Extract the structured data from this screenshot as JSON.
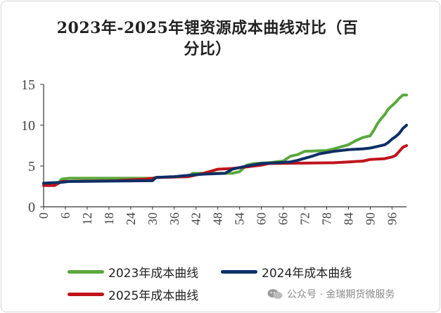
{
  "chart_data": {
    "type": "line",
    "title": "2023年-2025年锂资源成本曲线对比（百分比）",
    "title_lines": [
      "2023年-2025年锂资源成本曲线对比（百",
      "分比）"
    ],
    "xlabel": "",
    "ylabel": "",
    "x_ticks": [
      "0",
      "6",
      "12",
      "18",
      "24",
      "30",
      "36",
      "42",
      "48",
      "54",
      "60",
      "66",
      "72",
      "78",
      "84",
      "90",
      "96"
    ],
    "y_ticks": [
      "0",
      "5",
      "10",
      "15"
    ],
    "xlim": [
      0,
      100
    ],
    "ylim": [
      0,
      15
    ],
    "grid": false,
    "legend_position": "bottom",
    "series": [
      {
        "name": "2023年成本曲线",
        "color": "#5aa83c",
        "points": [
          [
            0,
            2.8
          ],
          [
            4,
            2.9
          ],
          [
            5,
            3.4
          ],
          [
            7,
            3.5
          ],
          [
            30,
            3.5
          ],
          [
            31,
            3.6
          ],
          [
            40,
            3.7
          ],
          [
            41,
            4.1
          ],
          [
            52,
            4.1
          ],
          [
            54,
            4.3
          ],
          [
            56,
            5.1
          ],
          [
            58,
            5.3
          ],
          [
            62,
            5.4
          ],
          [
            66,
            5.6
          ],
          [
            68,
            6.2
          ],
          [
            70,
            6.4
          ],
          [
            72,
            6.8
          ],
          [
            78,
            6.9
          ],
          [
            80,
            7.1
          ],
          [
            84,
            7.6
          ],
          [
            86,
            8.1
          ],
          [
            88,
            8.5
          ],
          [
            90,
            8.7
          ],
          [
            91,
            9.4
          ],
          [
            92,
            10.2
          ],
          [
            93,
            10.8
          ],
          [
            94,
            11.3
          ],
          [
            95,
            12.0
          ],
          [
            96,
            12.4
          ],
          [
            97,
            12.8
          ],
          [
            98,
            13.3
          ],
          [
            99,
            13.7
          ],
          [
            100,
            13.7
          ]
        ]
      },
      {
        "name": "2024年成本曲线",
        "color": "#0d2f66",
        "points": [
          [
            0,
            2.9
          ],
          [
            5,
            3.0
          ],
          [
            7,
            3.1
          ],
          [
            30,
            3.2
          ],
          [
            31,
            3.6
          ],
          [
            36,
            3.7
          ],
          [
            41,
            3.9
          ],
          [
            44,
            4.0
          ],
          [
            50,
            4.1
          ],
          [
            52,
            4.6
          ],
          [
            54,
            4.8
          ],
          [
            56,
            5.0
          ],
          [
            60,
            5.3
          ],
          [
            68,
            5.5
          ],
          [
            70,
            5.7
          ],
          [
            74,
            6.2
          ],
          [
            76,
            6.5
          ],
          [
            80,
            6.8
          ],
          [
            84,
            7.0
          ],
          [
            88,
            7.1
          ],
          [
            90,
            7.2
          ],
          [
            92,
            7.4
          ],
          [
            94,
            7.6
          ],
          [
            95,
            7.9
          ],
          [
            96,
            8.3
          ],
          [
            97,
            8.6
          ],
          [
            98,
            9.0
          ],
          [
            99,
            9.6
          ],
          [
            100,
            10.0
          ]
        ]
      },
      {
        "name": "2025年成本曲线",
        "color": "#c0141b",
        "points": [
          [
            0,
            2.6
          ],
          [
            3,
            2.6
          ],
          [
            5,
            3.1
          ],
          [
            20,
            3.2
          ],
          [
            28,
            3.4
          ],
          [
            32,
            3.6
          ],
          [
            40,
            3.7
          ],
          [
            44,
            4.1
          ],
          [
            48,
            4.6
          ],
          [
            52,
            4.7
          ],
          [
            56,
            4.9
          ],
          [
            60,
            5.1
          ],
          [
            62,
            5.3
          ],
          [
            80,
            5.4
          ],
          [
            84,
            5.5
          ],
          [
            88,
            5.6
          ],
          [
            90,
            5.8
          ],
          [
            94,
            5.9
          ],
          [
            96,
            6.1
          ],
          [
            97,
            6.3
          ],
          [
            98,
            6.8
          ],
          [
            99,
            7.3
          ],
          [
            100,
            7.5
          ]
        ]
      }
    ]
  },
  "watermark": {
    "text": "公众号 · 金瑞期货微服务"
  }
}
